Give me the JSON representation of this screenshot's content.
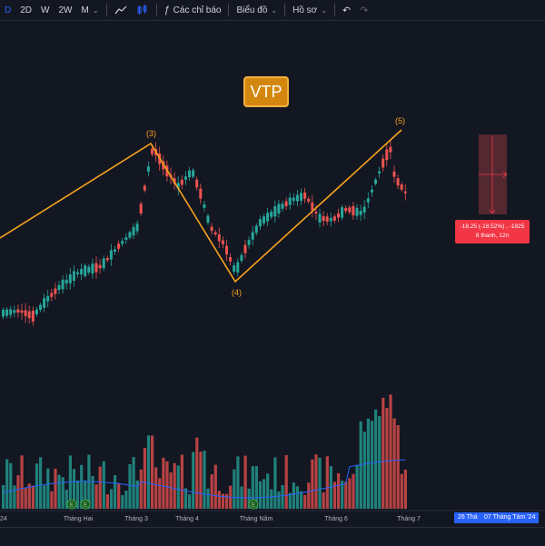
{
  "toolbar": {
    "intervals": [
      "D",
      "2D",
      "W",
      "2W",
      "M"
    ],
    "active_interval": "D",
    "indicators_label": "Các chỉ báo",
    "layout_label": "Biểu đồ",
    "profile_label": "Hồ sơ"
  },
  "symbol": "VTP",
  "colors": {
    "background": "#131722",
    "up": "#26a69a",
    "down": "#ef5350",
    "wave": "#f7a21b",
    "ma_line": "#2962ff",
    "measure_box": "#5b2a33",
    "measure_label": "#f23645"
  },
  "wave_labels": [
    "(3)",
    "(4)",
    "(5)"
  ],
  "measure": {
    "line1": "-18.25 (-18.52%) , -1825",
    "line2": "8 thanh, 12n"
  },
  "x_axis": {
    "labels": [
      "24",
      "Tháng Hai",
      "Tháng 3",
      "Tháng 4",
      "Tháng Năm",
      "Tháng 6",
      "Tháng 7"
    ],
    "range_start": "26 Thá",
    "range_end": "07 Tháng Tám '24"
  },
  "events": [
    "E",
    "E",
    "E"
  ]
}
